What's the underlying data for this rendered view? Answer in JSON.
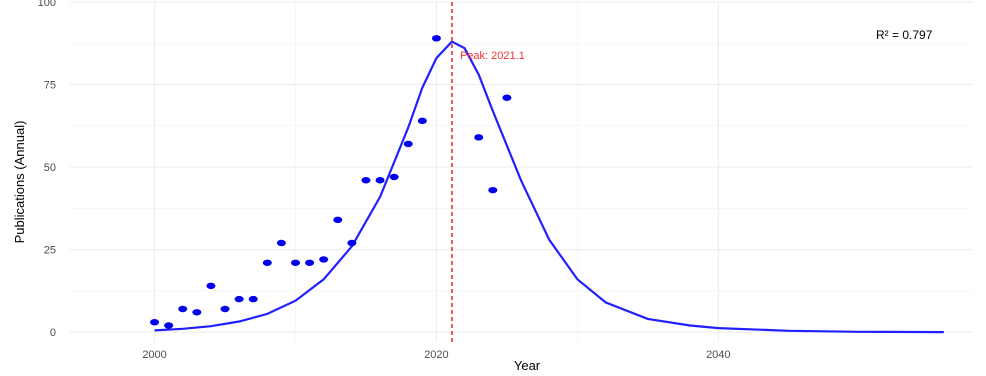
{
  "chart_data": {
    "type": "scatter",
    "xlabel": "Year",
    "ylabel": "Publications (Annual)",
    "xlim": [
      1994,
      2058
    ],
    "ylim": [
      -3,
      100
    ],
    "x_ticks": [
      2000,
      2020,
      2040
    ],
    "y_ticks": [
      0,
      25,
      50,
      75,
      100
    ],
    "grid": true,
    "points": {
      "x": [
        2000,
        2001,
        2002,
        2003,
        2004,
        2005,
        2006,
        2007,
        2008,
        2009,
        2010,
        2011,
        2012,
        2013,
        2014,
        2015,
        2016,
        2017,
        2018,
        2019,
        2020,
        2023,
        2024,
        2025
      ],
      "y": [
        3,
        2,
        7,
        6,
        14,
        7,
        10,
        10,
        21,
        27,
        21,
        21,
        22,
        34,
        27,
        46,
        46,
        47,
        57,
        64,
        89,
        59,
        43,
        71
      ],
      "color": "#0000ee"
    },
    "fit_curve": {
      "x": [
        2000,
        2002,
        2004,
        2006,
        2008,
        2010,
        2012,
        2014,
        2016,
        2018,
        2019,
        2020,
        2021.1,
        2022,
        2023,
        2024,
        2026,
        2028,
        2030,
        2032,
        2035,
        2038,
        2040,
        2045,
        2050,
        2056
      ],
      "y": [
        0.5,
        1,
        1.8,
        3.2,
        5.5,
        9.5,
        16,
        26,
        41,
        62,
        74,
        83,
        88,
        86,
        78,
        67,
        46,
        28,
        16,
        9,
        4,
        2,
        1.2,
        0.4,
        0.1,
        0
      ],
      "color": "#2020ff"
    },
    "peak": {
      "x": 2021.1,
      "label": "Peak: 2021.1",
      "color": "#ee3333"
    },
    "r_squared_label": "R² = 0.797"
  }
}
